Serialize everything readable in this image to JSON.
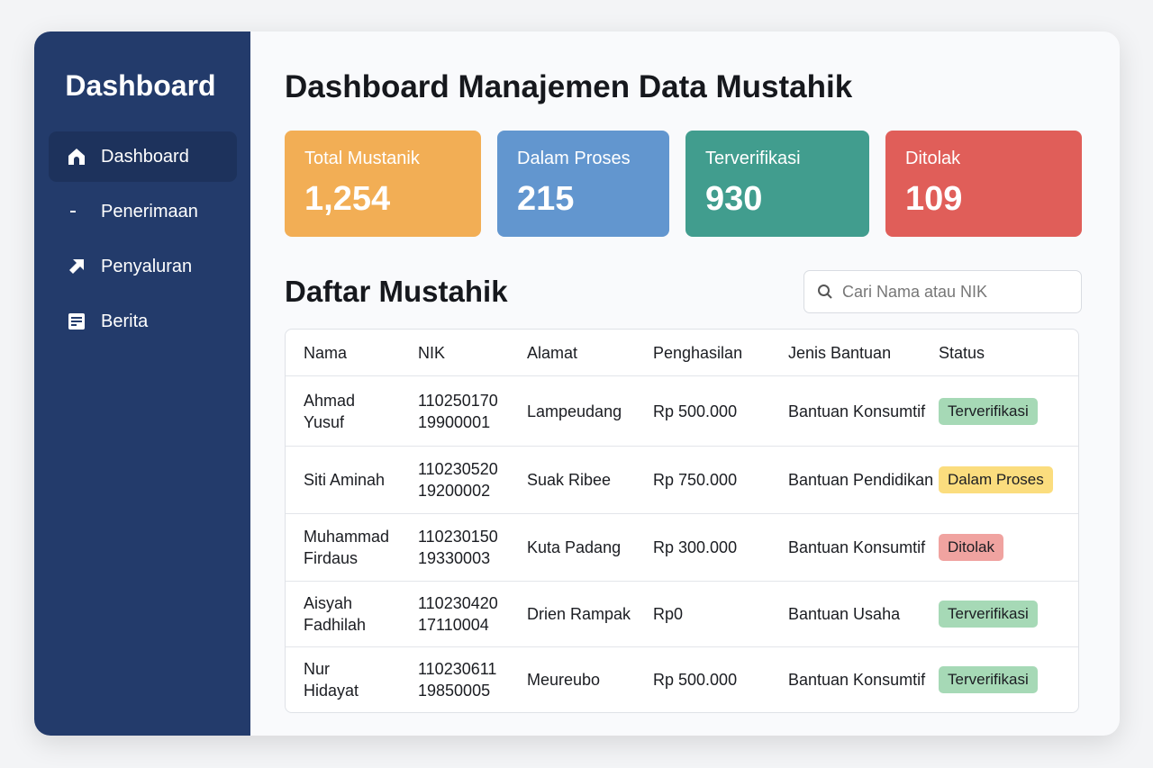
{
  "sidebar": {
    "title": "Dashboard",
    "items": [
      {
        "label": "Dashboard",
        "icon": "home-icon",
        "active": true
      },
      {
        "label": "Penerimaan",
        "icon": "receive-icon"
      },
      {
        "label": "Penyaluran",
        "icon": "arrow-up-right-icon"
      },
      {
        "label": "Berita",
        "icon": "news-icon"
      }
    ]
  },
  "main": {
    "title": "Dashboard Manajemen Data Mustahik",
    "stats": [
      {
        "label": "Total Mustanik",
        "value": "1,254",
        "color": "#f2ae55"
      },
      {
        "label": "Dalam Proses",
        "value": "215",
        "color": "#6296cf"
      },
      {
        "label": "Terverifikasi",
        "value": "930",
        "color": "#419d8e"
      },
      {
        "label": "Ditolak",
        "value": "109",
        "color": "#e05e59"
      }
    ],
    "list_title": "Daftar Mustahik",
    "search": {
      "placeholder": "Cari Nama atau NIK",
      "icon": "search-icon"
    },
    "table": {
      "columns": [
        "Nama",
        "NIK",
        "Alamat",
        "Penghasilan",
        "Jenis Bantuan",
        "Status"
      ],
      "rows": [
        {
          "nama": [
            "Ahmad",
            "Yusuf"
          ],
          "nik": [
            "110250170",
            "19900001"
          ],
          "alamat": "Lampeudang",
          "penghasilan": "Rp 500.000",
          "jenis": "Bantuan Konsumtif",
          "status": "Terverifikasi"
        },
        {
          "nama": [
            "Siti Aminah",
            ""
          ],
          "nik": [
            "110230520",
            "19200002"
          ],
          "alamat": "Suak Ribee",
          "penghasilan": "Rp 750.000",
          "jenis": "Bantuan Pendidikan",
          "status": "Dalam Proses"
        },
        {
          "nama": [
            "Muhammad",
            "Firdaus"
          ],
          "nik": [
            "110230150",
            "19330003"
          ],
          "alamat": "Kuta Padang",
          "penghasilan": "Rp 300.000",
          "jenis": "Bantuan Konsumtif",
          "status": "Ditolak"
        },
        {
          "nama": [
            "Aisyah",
            "Fadhilah"
          ],
          "nik": [
            "110230420",
            "17110004"
          ],
          "alamat": "Drien Rampak",
          "penghasilan": "Rp0",
          "jenis": "Bantuan Usaha",
          "status": "Terverifikasi"
        },
        {
          "nama": [
            "Nur",
            "Hidayat"
          ],
          "nik": [
            "110230611",
            "19850005"
          ],
          "alamat": "Meureubo",
          "penghasilan": "Rp 500.000",
          "jenis": "Bantuan Konsumtif",
          "status": "Terverifikasi"
        }
      ]
    },
    "status_colors": {
      "Terverifikasi": "#a6d9b6",
      "Dalam Proses": "#fbdd7e",
      "Ditolak": "#f0a3a0"
    }
  }
}
